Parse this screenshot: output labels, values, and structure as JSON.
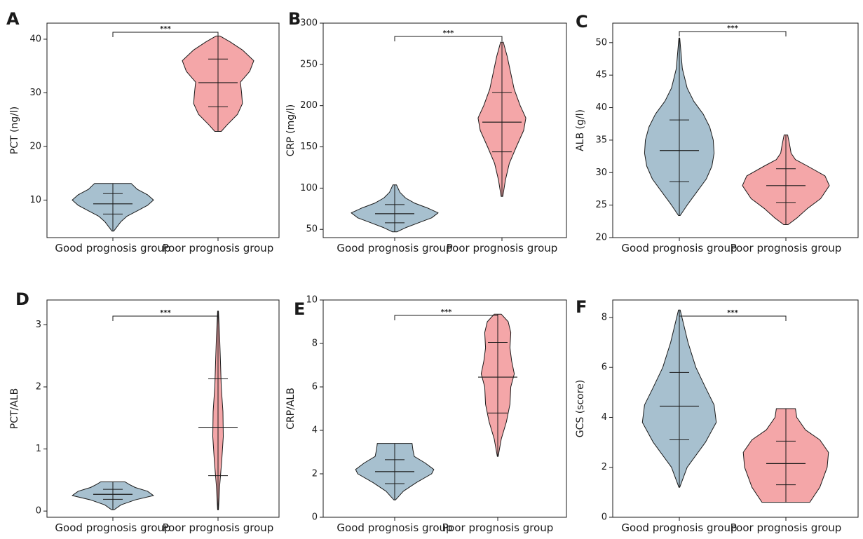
{
  "colors": {
    "good": "#a7c0cf",
    "poor": "#f4a6a8",
    "stroke": "#1a1a1a"
  },
  "chart_data": [
    {
      "type": "violin",
      "panel": "A",
      "ylabel": "PCT (ng/l)",
      "ylim": [
        3,
        43
      ],
      "yticks": [
        10,
        20,
        30,
        40
      ],
      "categories": [
        "Good prognosis group",
        "Poor prognosis group"
      ],
      "significance": "***",
      "groups": [
        {
          "category": "Good prognosis group",
          "min": 4.2,
          "max": 13.1,
          "median": 9.3,
          "q1": 7.4,
          "q3": 11.2,
          "shape": [
            [
              4.2,
              0.02
            ],
            [
              5,
              0.1
            ],
            [
              6,
              0.2
            ],
            [
              7,
              0.35
            ],
            [
              8,
              0.6
            ],
            [
              9,
              0.85
            ],
            [
              10,
              1.0
            ],
            [
              11,
              0.85
            ],
            [
              12,
              0.6
            ],
            [
              13.1,
              0.45
            ]
          ]
        },
        {
          "category": "Poor prognosis group",
          "min": 22.8,
          "max": 40.6,
          "median": 31.9,
          "q1": 27.4,
          "q3": 36.3,
          "shape": [
            [
              22.8,
              0.08
            ],
            [
              24,
              0.22
            ],
            [
              26,
              0.48
            ],
            [
              28,
              0.6
            ],
            [
              30,
              0.58
            ],
            [
              32,
              0.55
            ],
            [
              34,
              0.78
            ],
            [
              36,
              0.88
            ],
            [
              38,
              0.6
            ],
            [
              39.5,
              0.3
            ],
            [
              40.6,
              0.05
            ]
          ]
        }
      ]
    },
    {
      "type": "violin",
      "panel": "B",
      "ylabel": "CRP (mg/l)",
      "ylim": [
        40,
        300
      ],
      "yticks": [
        50,
        100,
        150,
        200,
        250,
        300
      ],
      "categories": [
        "Good prognosis group",
        "Poor prognosis group"
      ],
      "significance": "***",
      "groups": [
        {
          "category": "Good prognosis group",
          "min": 47,
          "max": 104,
          "median": 69,
          "q1": 58,
          "q3": 80,
          "shape": [
            [
              47,
              0.05
            ],
            [
              52,
              0.25
            ],
            [
              58,
              0.55
            ],
            [
              64,
              0.85
            ],
            [
              70,
              1.0
            ],
            [
              76,
              0.75
            ],
            [
              82,
              0.45
            ],
            [
              88,
              0.25
            ],
            [
              95,
              0.12
            ],
            [
              104,
              0.04
            ]
          ]
        },
        {
          "category": "Poor prognosis group",
          "min": 90,
          "max": 277,
          "median": 180,
          "q1": 144,
          "q3": 216,
          "shape": [
            [
              90,
              0.02
            ],
            [
              110,
              0.08
            ],
            [
              130,
              0.17
            ],
            [
              150,
              0.33
            ],
            [
              170,
              0.5
            ],
            [
              185,
              0.55
            ],
            [
              200,
              0.42
            ],
            [
              220,
              0.28
            ],
            [
              240,
              0.2
            ],
            [
              260,
              0.12
            ],
            [
              277,
              0.03
            ]
          ]
        }
      ]
    },
    {
      "type": "violin",
      "panel": "C",
      "ylabel": "ALB (g/l)",
      "ylim": [
        20,
        53
      ],
      "yticks": [
        20,
        25,
        30,
        35,
        40,
        45,
        50
      ],
      "categories": [
        "Good prognosis group",
        "Poor prognosis group"
      ],
      "significance": "***",
      "groups": [
        {
          "category": "Good prognosis group",
          "min": 23.4,
          "max": 50.7,
          "median": 33.4,
          "q1": 28.6,
          "q3": 38.1,
          "shape": [
            [
              23.4,
              0.02
            ],
            [
              25,
              0.18
            ],
            [
              27,
              0.4
            ],
            [
              29,
              0.62
            ],
            [
              31,
              0.75
            ],
            [
              33,
              0.8
            ],
            [
              35,
              0.78
            ],
            [
              37,
              0.7
            ],
            [
              39,
              0.55
            ],
            [
              41,
              0.33
            ],
            [
              43,
              0.18
            ],
            [
              46,
              0.07
            ],
            [
              50.7,
              0.01
            ]
          ]
        },
        {
          "category": "Poor prognosis group",
          "min": 22,
          "max": 35.8,
          "median": 28,
          "q1": 25.4,
          "q3": 30.6,
          "shape": [
            [
              22,
              0.05
            ],
            [
              23,
              0.25
            ],
            [
              24.5,
              0.5
            ],
            [
              26,
              0.8
            ],
            [
              28,
              1.0
            ],
            [
              29.5,
              0.9
            ],
            [
              31,
              0.5
            ],
            [
              32,
              0.22
            ],
            [
              33,
              0.12
            ],
            [
              34.5,
              0.08
            ],
            [
              35.8,
              0.04
            ]
          ]
        }
      ]
    },
    {
      "type": "violin",
      "panel": "D",
      "ylabel": "PCT/ALB",
      "ylim": [
        -0.1,
        3.4
      ],
      "yticks": [
        0,
        1,
        2,
        3
      ],
      "categories": [
        "Good prognosis group",
        "Poor prognosis group"
      ],
      "significance": "***",
      "groups": [
        {
          "category": "Good prognosis group",
          "min": 0.02,
          "max": 0.47,
          "median": 0.27,
          "q1": 0.19,
          "q3": 0.35,
          "shape": [
            [
              0.02,
              0.03
            ],
            [
              0.1,
              0.2
            ],
            [
              0.18,
              0.55
            ],
            [
              0.25,
              1.0
            ],
            [
              0.32,
              0.85
            ],
            [
              0.38,
              0.55
            ],
            [
              0.43,
              0.4
            ],
            [
              0.47,
              0.3
            ]
          ]
        },
        {
          "category": "Poor prognosis group",
          "min": 0.02,
          "max": 3.22,
          "median": 1.35,
          "q1": 0.57,
          "q3": 2.13,
          "shape": [
            [
              0.02,
              0.01
            ],
            [
              0.4,
              0.04
            ],
            [
              0.8,
              0.09
            ],
            [
              1.2,
              0.13
            ],
            [
              1.6,
              0.12
            ],
            [
              2.0,
              0.08
            ],
            [
              2.4,
              0.06
            ],
            [
              2.8,
              0.04
            ],
            [
              3.22,
              0.01
            ]
          ]
        }
      ]
    },
    {
      "type": "violin",
      "panel": "E",
      "ylabel": "CRP/ALB",
      "ylim": [
        0,
        10
      ],
      "yticks": [
        0,
        2,
        4,
        6,
        8,
        10
      ],
      "categories": [
        "Good prognosis group",
        "Poor prognosis group"
      ],
      "significance": "***",
      "groups": [
        {
          "category": "Good prognosis group",
          "min": 0.8,
          "max": 3.4,
          "median": 2.1,
          "q1": 1.55,
          "q3": 2.65,
          "shape": [
            [
              0.8,
              0.02
            ],
            [
              1.2,
              0.2
            ],
            [
              1.6,
              0.5
            ],
            [
              2.0,
              0.85
            ],
            [
              2.2,
              0.9
            ],
            [
              2.5,
              0.7
            ],
            [
              2.8,
              0.45
            ],
            [
              3.1,
              0.42
            ],
            [
              3.4,
              0.4
            ]
          ]
        },
        {
          "category": "Poor prognosis group",
          "min": 2.8,
          "max": 9.35,
          "median": 6.45,
          "q1": 4.8,
          "q3": 8.05,
          "shape": [
            [
              2.8,
              0.01
            ],
            [
              3.6,
              0.08
            ],
            [
              4.4,
              0.2
            ],
            [
              5.2,
              0.28
            ],
            [
              6.0,
              0.3
            ],
            [
              6.6,
              0.38
            ],
            [
              7.2,
              0.32
            ],
            [
              7.8,
              0.28
            ],
            [
              8.5,
              0.3
            ],
            [
              9.0,
              0.24
            ],
            [
              9.35,
              0.08
            ]
          ]
        }
      ]
    },
    {
      "type": "violin",
      "panel": "F",
      "ylabel": "GCS (score)",
      "ylim": [
        0,
        8.7
      ],
      "yticks": [
        0,
        2,
        4,
        6,
        8
      ],
      "categories": [
        "Good prognosis group",
        "Poor prognosis group"
      ],
      "significance": "***",
      "groups": [
        {
          "category": "Good prognosis group",
          "min": 1.2,
          "max": 8.3,
          "median": 4.45,
          "q1": 3.1,
          "q3": 5.8,
          "shape": [
            [
              1.2,
              0.01
            ],
            [
              2,
              0.18
            ],
            [
              3,
              0.6
            ],
            [
              3.8,
              0.85
            ],
            [
              4.5,
              0.8
            ],
            [
              5.2,
              0.6
            ],
            [
              6,
              0.38
            ],
            [
              7,
              0.2
            ],
            [
              8.3,
              0.02
            ]
          ]
        },
        {
          "category": "Poor prognosis group",
          "min": 0.6,
          "max": 4.35,
          "median": 2.15,
          "q1": 1.3,
          "q3": 3.05,
          "shape": [
            [
              0.6,
              0.55
            ],
            [
              1.2,
              0.78
            ],
            [
              2,
              0.95
            ],
            [
              2.6,
              0.98
            ],
            [
              3.1,
              0.78
            ],
            [
              3.5,
              0.45
            ],
            [
              4,
              0.25
            ],
            [
              4.35,
              0.22
            ]
          ]
        }
      ]
    }
  ]
}
